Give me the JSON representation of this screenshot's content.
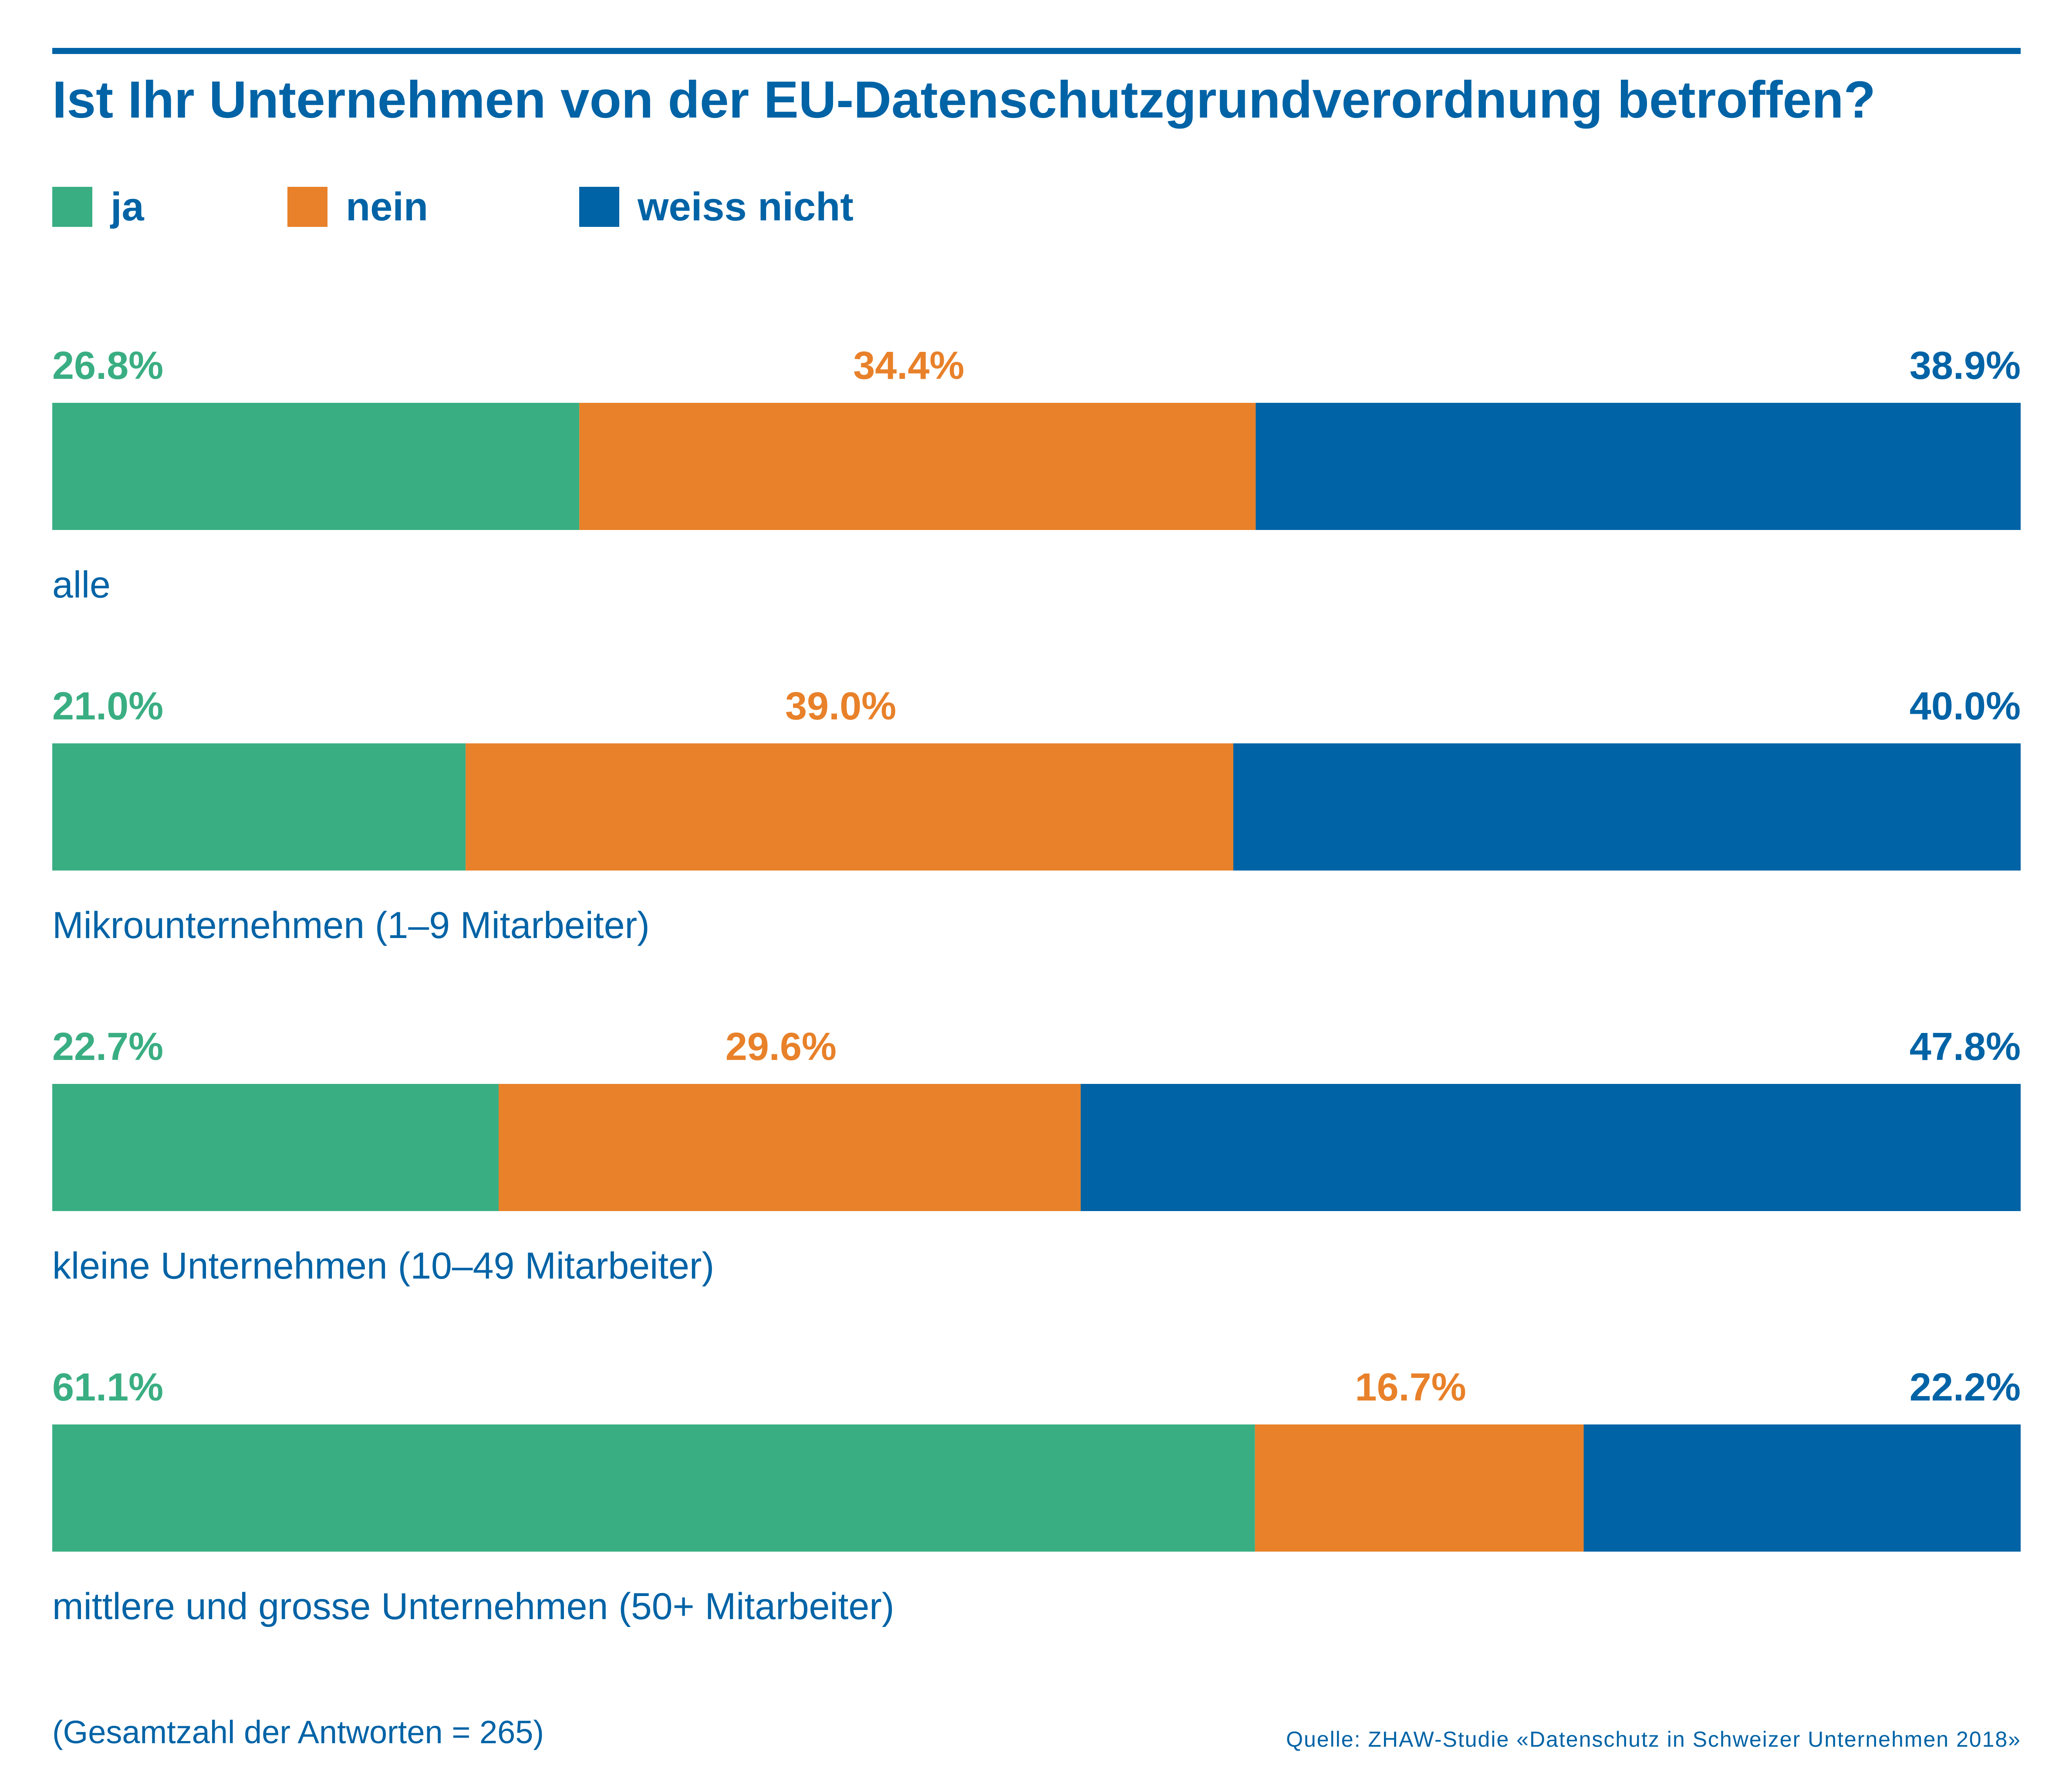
{
  "title": "Ist Ihr Unternehmen von der EU-Datenschutzgrundverordnung betroffen?",
  "footnote": "(Gesamtzahl der Antworten = 265)",
  "source": "Quelle: ZHAW-Studie «Datenschutz in Schweizer Unternehmen 2018»",
  "colors": {
    "ja": "#3aae83",
    "nein": "#e8812a",
    "weiss_nicht": "#0063a6",
    "text": "#0063a6"
  },
  "legend": [
    {
      "label": "ja",
      "color": "#3aae83"
    },
    {
      "label": "nein",
      "color": "#e8812a"
    },
    {
      "label": "weiss nicht",
      "color": "#0063a6"
    }
  ],
  "chart_data": {
    "type": "bar",
    "orientation": "horizontal",
    "stacked": true,
    "categories": [
      "alle",
      "Mikrounternehmen (1–9 Mitarbeiter)",
      "kleine Unternehmen (10–49 Mitarbeiter)",
      "mittlere und grosse Unternehmen (50+ Mitarbeiter)"
    ],
    "series": [
      {
        "name": "ja",
        "color": "#3aae83",
        "values": [
          26.8,
          21.0,
          22.7,
          61.1
        ],
        "labels": [
          "26.8%",
          "21.0%",
          "22.7%",
          "61.1%"
        ]
      },
      {
        "name": "nein",
        "color": "#e8812a",
        "values": [
          34.4,
          39.0,
          29.6,
          16.7
        ],
        "labels": [
          "34.4%",
          "39.0%",
          "29.6%",
          "16.7%"
        ]
      },
      {
        "name": "weiss nicht",
        "color": "#0063a6",
        "values": [
          38.9,
          40.0,
          47.8,
          22.2
        ],
        "labels": [
          "38.9%",
          "40.0%",
          "47.8%",
          "22.2%"
        ]
      }
    ],
    "xlim": [
      0,
      100
    ],
    "grid": false,
    "legend_position": "top-left"
  }
}
